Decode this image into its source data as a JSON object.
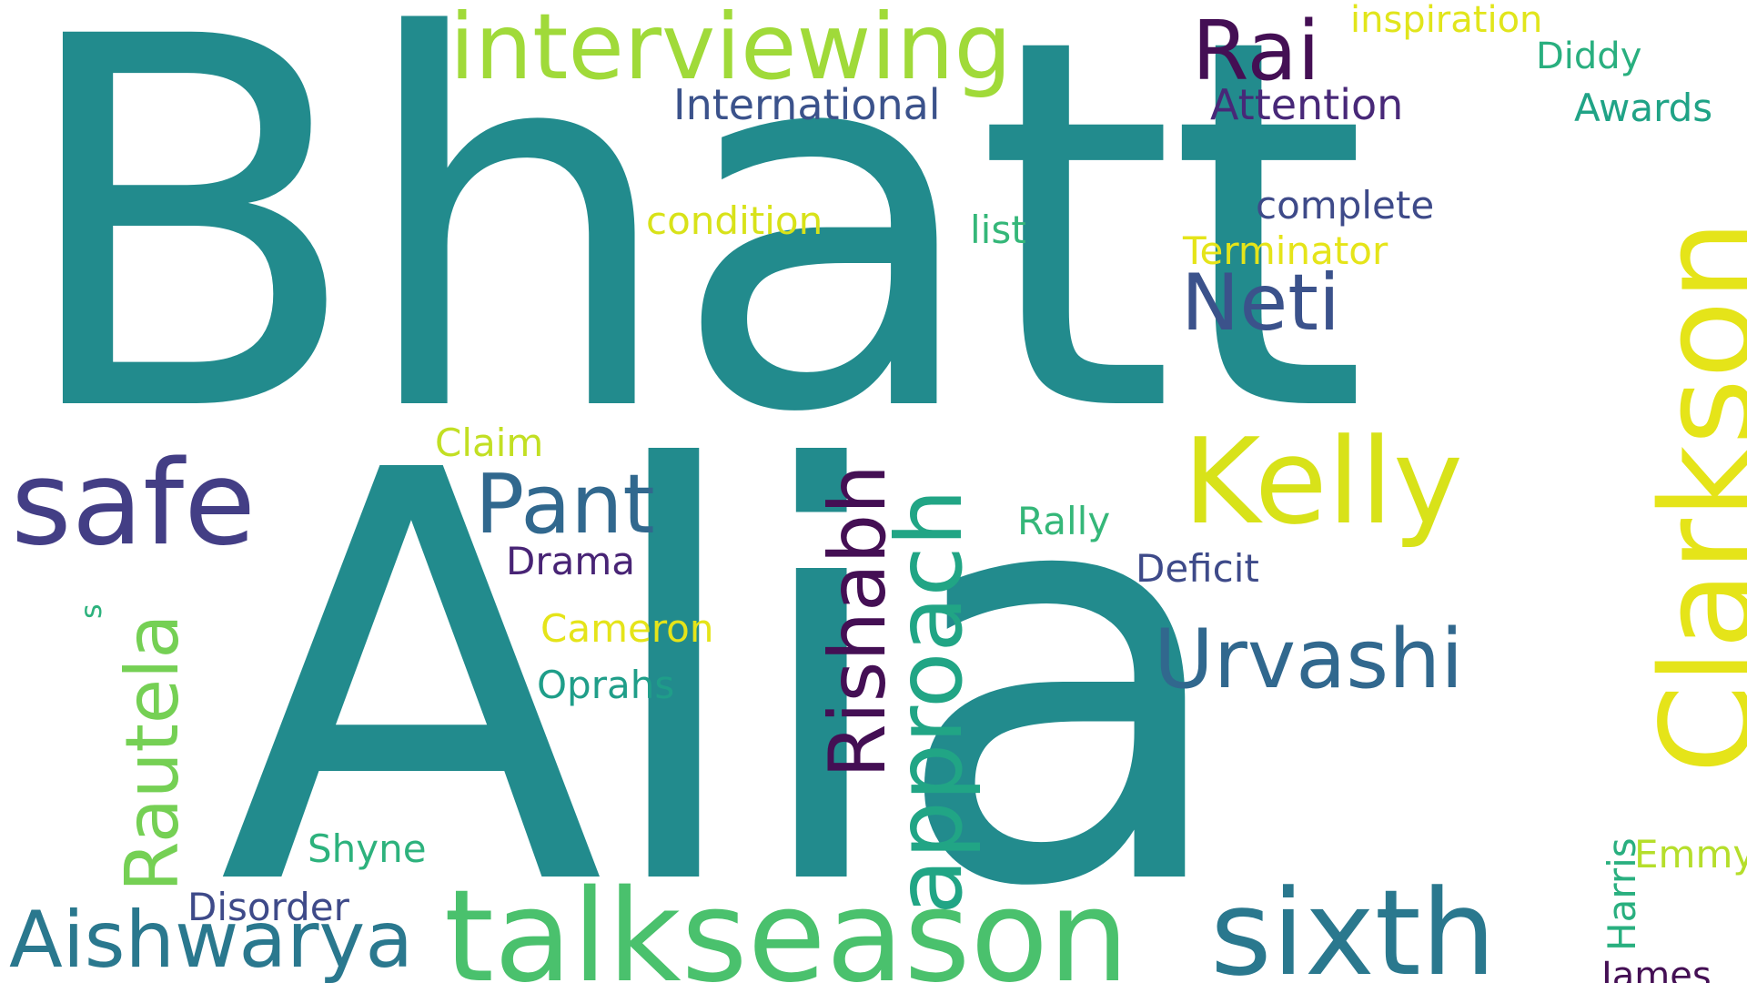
{
  "words": {
    "bhatt": {
      "text": "Bhatt",
      "color": "#228b8d"
    },
    "alia": {
      "text": "Alia",
      "color": "#228b8d"
    },
    "interviewing": {
      "text": "interviewing",
      "color": "#a0da39"
    },
    "rai": {
      "text": "Rai",
      "color": "#440f54"
    },
    "inspiration": {
      "text": "inspiration",
      "color": "#e1e51b"
    },
    "diddy": {
      "text": "Diddy",
      "color": "#29af7f"
    },
    "international": {
      "text": "International",
      "color": "#3b528b"
    },
    "attention": {
      "text": "Attention",
      "color": "#482878"
    },
    "awards": {
      "text": "Awards",
      "color": "#20a386"
    },
    "complete": {
      "text": "complete",
      "color": "#3e4a89"
    },
    "condition": {
      "text": "condition",
      "color": "#d8e219"
    },
    "list": {
      "text": "list",
      "color": "#35b779"
    },
    "terminator": {
      "text": "Terminator",
      "color": "#e5e419"
    },
    "neti": {
      "text": "Neti",
      "color": "#3b528b"
    },
    "clarkson": {
      "text": "Clarkson",
      "color": "#e5e419"
    },
    "kelly": {
      "text": "Kelly",
      "color": "#d8e219"
    },
    "safe": {
      "text": "safe",
      "color": "#433e85"
    },
    "claim": {
      "text": "Claim",
      "color": "#c2df23"
    },
    "pant": {
      "text": "Pant",
      "color": "#31688e"
    },
    "rishabh": {
      "text": "Rishabh",
      "color": "#440f54"
    },
    "approach": {
      "text": "approach",
      "color": "#21a585"
    },
    "rally": {
      "text": "Rally",
      "color": "#35b779"
    },
    "drama": {
      "text": "Drama",
      "color": "#482475"
    },
    "deficit": {
      "text": "Deficit",
      "color": "#3e4a89"
    },
    "rautela": {
      "text": "Rautela",
      "color": "#75d054"
    },
    "s": {
      "text": "s",
      "color": "#2db27d"
    },
    "cameron": {
      "text": "Cameron",
      "color": "#e5e419"
    },
    "urvashi": {
      "text": "Urvashi",
      "color": "#31688e"
    },
    "oprahs": {
      "text": "Oprahs",
      "color": "#1f9e89"
    },
    "shyne": {
      "text": "Shyne",
      "color": "#2db27d"
    },
    "emmy": {
      "text": "Emmy",
      "color": "#b5de2b"
    },
    "harris": {
      "text": "Harris",
      "color": "#29af7f"
    },
    "disorder": {
      "text": "Disorder",
      "color": "#3e4a89"
    },
    "aishwarya": {
      "text": "Aishwarya",
      "color": "#2a788e"
    },
    "talkseason": {
      "text": "talkseason",
      "color": "#4ac16d"
    },
    "sixth": {
      "text": "sixth",
      "color": "#2a788e"
    },
    "james": {
      "text": "James",
      "color": "#440f54"
    }
  }
}
